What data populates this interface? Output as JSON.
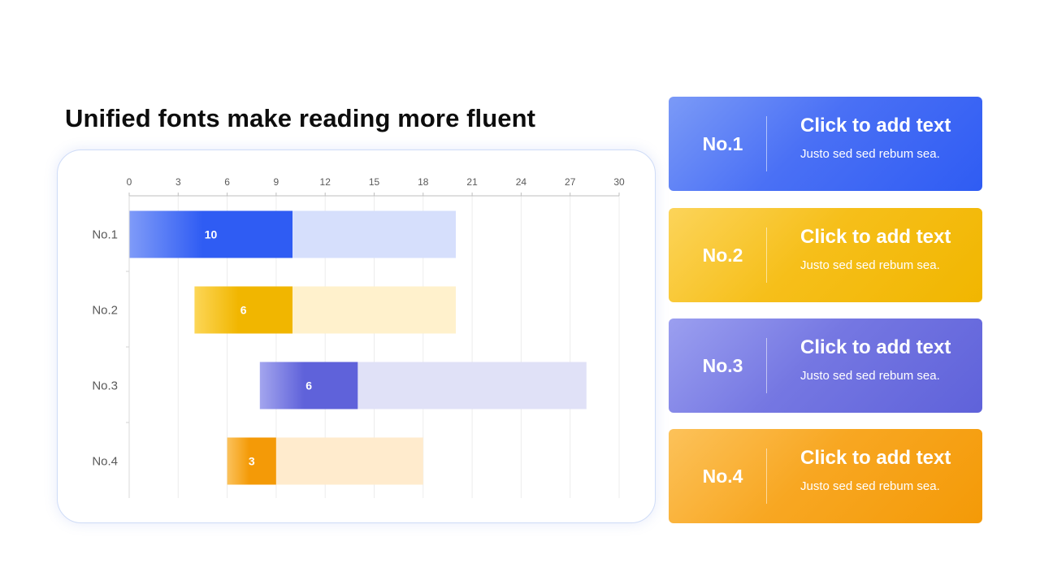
{
  "title": "Unified fonts make reading more fluent",
  "chart_data": {
    "type": "bar",
    "orientation": "horizontal",
    "stacked": true,
    "categories": [
      "No.1",
      "No.2",
      "No.3",
      "No.4"
    ],
    "series": [
      {
        "values": [
          0,
          4,
          8,
          6
        ],
        "colors": [
          "transparent",
          "transparent",
          "transparent",
          "transparent"
        ]
      },
      {
        "values": [
          10,
          6,
          6,
          3
        ],
        "colors": [
          "#2f5cf3",
          "#f1b600",
          "#5f62da",
          "#f49a07"
        ]
      },
      {
        "values": [
          10,
          10,
          14,
          9
        ],
        "colors": [
          "#d6dffc",
          "#fff1cc",
          "#e0e1f7",
          "#ffebcd"
        ]
      }
    ],
    "data_labels": [
      "10",
      "6",
      "6",
      "3"
    ],
    "xlim": [
      0,
      30
    ],
    "xticks": [
      "0",
      "3",
      "6",
      "9",
      "12",
      "15",
      "18",
      "21",
      "24",
      "27",
      "30"
    ],
    "x_axis_position": "top",
    "grid": "vertical",
    "legend": "none"
  },
  "cards": [
    {
      "num": "No.1",
      "heading": "Click to add text",
      "sub": "Justo sed sed rebum sea."
    },
    {
      "num": "No.2",
      "heading": "Click to add text",
      "sub": "Justo sed sed rebum sea."
    },
    {
      "num": "No.3",
      "heading": "Click to add text",
      "sub": "Justo sed sed rebum sea."
    },
    {
      "num": "No.4",
      "heading": "Click to add text",
      "sub": "Justo sed sed rebum sea."
    }
  ]
}
